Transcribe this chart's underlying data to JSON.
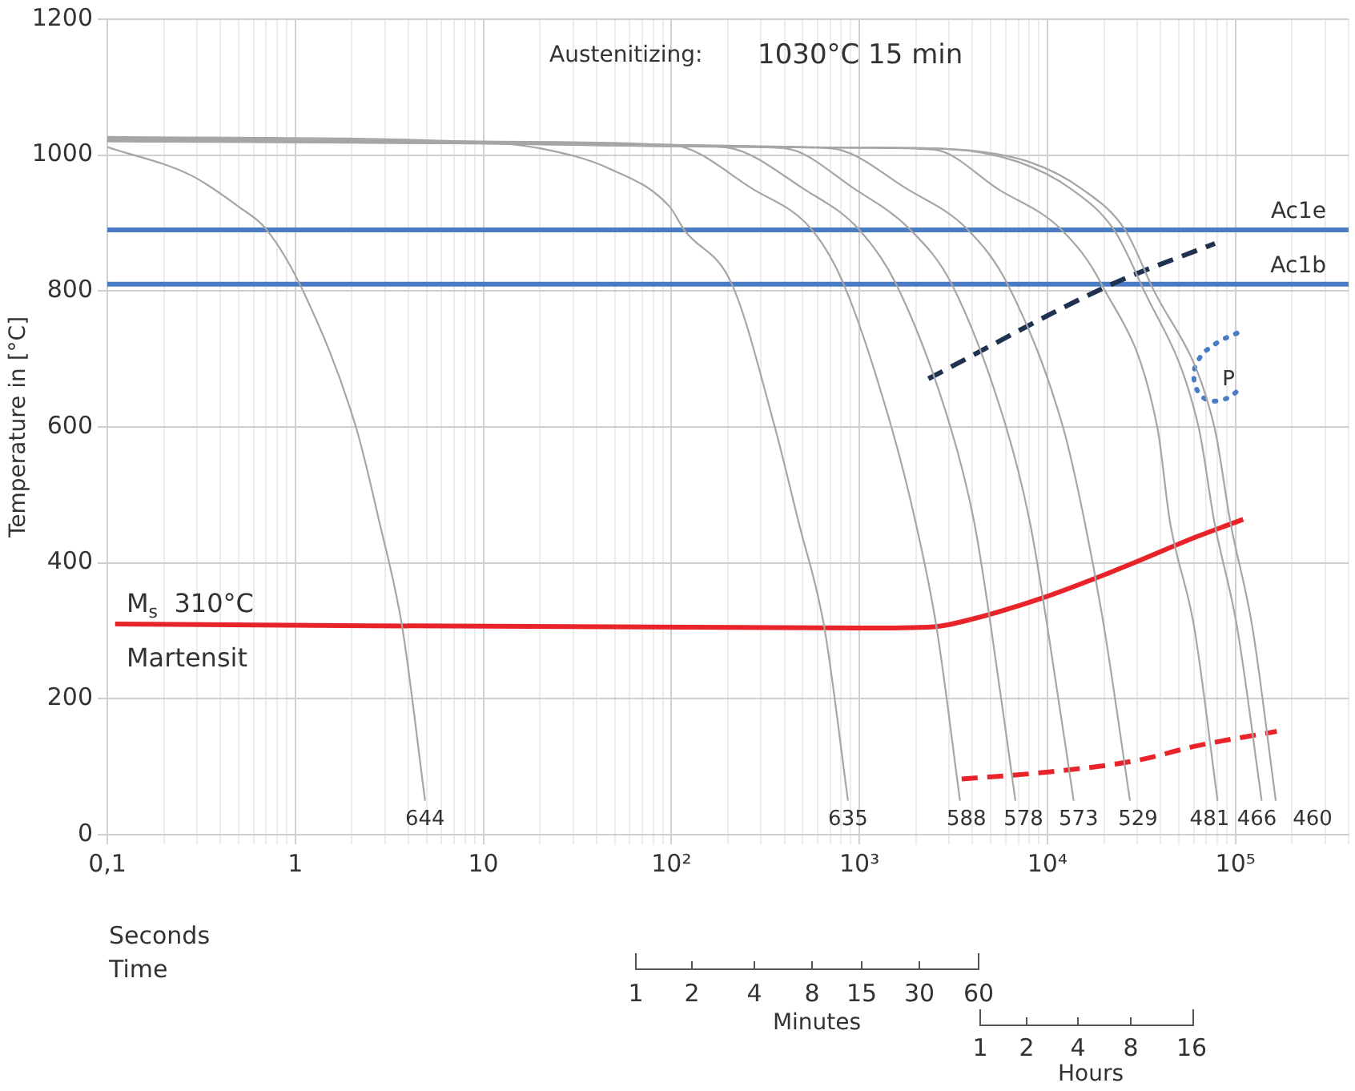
{
  "chart_data": {
    "type": "line",
    "ylabel": "Temperature in [°C]",
    "xlabel": "Time",
    "log": "x",
    "grid": true,
    "marker": "none",
    "line_style": "solid",
    "color": "#a6a6a6",
    "xlim": [
      0.1,
      400000
    ],
    "ylim": [
      0,
      1200
    ],
    "xticks": [
      {
        "value": 0.1,
        "label": "0,1"
      },
      {
        "value": 0.2,
        "label": null
      },
      {
        "value": 0.3,
        "label": null
      },
      {
        "value": 0.4,
        "label": null
      },
      {
        "value": 0.5,
        "label": null
      },
      {
        "value": 0.6,
        "label": null
      },
      {
        "value": 0.7,
        "label": null
      },
      {
        "value": 0.8,
        "label": null
      },
      {
        "value": 0.9,
        "label": null
      },
      1,
      {
        "value": 2,
        "label": null
      },
      {
        "value": 3,
        "label": null
      },
      {
        "value": 4,
        "label": null
      },
      {
        "value": 5,
        "label": null
      },
      {
        "value": 6,
        "label": null
      },
      {
        "value": 7,
        "label": null
      },
      {
        "value": 8,
        "label": null
      },
      {
        "value": 9,
        "label": null
      },
      10,
      {
        "value": 20,
        "label": null
      },
      {
        "value": 30,
        "label": null
      },
      {
        "value": 40,
        "label": null
      },
      {
        "value": 50,
        "label": null
      },
      {
        "value": 60,
        "label": null
      },
      {
        "value": 70,
        "label": null
      },
      {
        "value": 80,
        "label": null
      },
      {
        "value": 90,
        "label": null
      },
      {
        "value": 100,
        "label": "10²"
      },
      {
        "value": 200,
        "label": null
      },
      {
        "value": 300,
        "label": null
      },
      {
        "value": 400,
        "label": null
      },
      {
        "value": 500,
        "label": null
      },
      {
        "value": 600,
        "label": null
      },
      {
        "value": 700,
        "label": null
      },
      {
        "value": 800,
        "label": null
      },
      {
        "value": 900,
        "label": null
      },
      {
        "value": 1000,
        "label": "10³"
      },
      {
        "value": 2000,
        "label": null
      },
      {
        "value": 3000,
        "label": null
      },
      {
        "value": 4000,
        "label": null
      },
      {
        "value": 5000,
        "label": null
      },
      {
        "value": 6000,
        "label": null
      },
      {
        "value": 7000,
        "label": null
      },
      {
        "value": 8000,
        "label": null
      },
      {
        "value": 9000,
        "label": null
      },
      {
        "value": 10000,
        "label": "10⁴"
      },
      {
        "value": 20000,
        "label": null
      },
      {
        "value": 30000,
        "label": null
      },
      {
        "value": 40000,
        "label": null
      },
      {
        "value": 50000,
        "label": null
      },
      {
        "value": 60000,
        "label": null
      },
      {
        "value": 70000,
        "label": null
      },
      {
        "value": 80000,
        "label": null
      },
      {
        "value": 90000,
        "label": null
      },
      {
        "value": 100000,
        "label": "10⁵"
      },
      {
        "value": 200000,
        "label": null
      },
      {
        "value": 300000,
        "label": null
      },
      {
        "value": 400000,
        "label": null
      }
    ],
    "yticks": [
      0,
      200,
      400,
      600,
      800,
      1000,
      1200
    ],
    "series": [
      {
        "name": "644",
        "x": [
          0.1,
          0.28,
          0.5,
          0.7,
          1.1,
          2.1,
          2.8,
          3.7,
          4.9
        ],
        "values": [
          1012,
          970,
          924,
          891,
          800,
          600,
          460,
          306,
          50
        ]
      },
      {
        "name": "635",
        "x": [
          0.1,
          10,
          20,
          47,
          98,
          117,
          210,
          355,
          475,
          650,
          870
        ],
        "values": [
          1027,
          1019,
          1010,
          980,
          924,
          890,
          810,
          600,
          460,
          306,
          50
        ]
      },
      {
        "name": "588",
        "x": [
          0.1,
          10,
          100,
          272,
          560,
          826,
          1480,
          1990,
          2570,
          3430
        ],
        "values": [
          1026,
          1020,
          1015,
          950,
          890,
          810,
          600,
          460,
          306,
          50
        ]
      },
      {
        "name": "578",
        "x": [
          0.1,
          10,
          100,
          200,
          508,
          1000,
          1570,
          3050,
          4080,
          5010,
          6760
        ],
        "values": [
          1025,
          1019,
          1015,
          1011,
          950,
          890,
          810,
          600,
          460,
          306,
          50
        ]
      },
      {
        "name": "573",
        "x": [
          0.1,
          10,
          100,
          400,
          946,
          1870,
          3100,
          6030,
          8070,
          10000,
          13800
        ],
        "values": [
          1024,
          1019,
          1015,
          1010,
          950,
          890,
          810,
          600,
          460,
          306,
          50
        ]
      },
      {
        "name": "529",
        "x": [
          0.1,
          10,
          100,
          700,
          1800,
          3780,
          6140,
          12100,
          15800,
          20000,
          27500
        ],
        "values": [
          1023,
          1018,
          1014,
          1010,
          950,
          890,
          810,
          600,
          460,
          306,
          50
        ]
      },
      {
        "name": "481",
        "x": [
          0.1,
          10,
          100,
          1000,
          2500,
          5470,
          11900,
          19400,
          38400,
          44900,
          60300,
          80400
        ],
        "values": [
          1022,
          1018,
          1014,
          1011,
          1008,
          950,
          890,
          810,
          600,
          460,
          306,
          50
        ]
      },
      {
        "name": "466",
        "x": [
          0.1,
          10,
          100,
          1000,
          3000,
          7000,
          13400,
          22600,
          31500,
          63700,
          77300,
          102000,
          138000
        ],
        "values": [
          1021,
          1017,
          1013,
          1011,
          1009,
          990,
          950,
          890,
          810,
          600,
          460,
          306,
          50
        ]
      },
      {
        "name": "460",
        "x": [
          0.1,
          10,
          100,
          1000,
          3000,
          8000,
          15300,
          25900,
          35500,
          77300,
          94000,
          123000,
          164000
        ],
        "values": [
          1020,
          1017,
          1013,
          1011,
          1009,
          990,
          950,
          890,
          810,
          600,
          460,
          306,
          50
        ]
      },
      {
        "color": "#e8242a",
        "x": [
          0.11,
          1000,
          2500,
          3700,
          9100,
          24000,
          63000,
          110000
        ],
        "values": [
          310,
          304,
          306,
          315,
          347,
          391,
          439,
          464
        ]
      },
      {
        "color": "#e8242a",
        "line_style": "dashed",
        "x": [
          3500,
          9100,
          29600,
          63000,
          166000
        ],
        "values": [
          82,
          91,
          109,
          131,
          152
        ]
      },
      {
        "color": "#1f3350",
        "line_style": "dashed",
        "x": [
          2330,
          21200,
          77800
        ],
        "values": [
          671,
          808,
          870
        ]
      },
      {
        "color": "#4a7cc4",
        "line_style": "dotted",
        "x": [
          102000,
          80000,
          64000,
          60300,
          68400,
          85700,
          108000
        ],
        "values": [
          738,
          724,
          700,
          669,
          642,
          640,
          657
        ]
      }
    ],
    "ref_lines": [
      {
        "axis": "y",
        "value": 890,
        "label": "Ac1e",
        "color": "#4a7cc4"
      },
      {
        "axis": "y",
        "value": 810,
        "label": "Ac1b",
        "color": "#4a7cc4"
      }
    ],
    "annotations": [
      "Austenitizing:",
      "1030°C 15 min",
      "M$_{s}$  310°C",
      "Martensit",
      "Seconds",
      "P",
      "1",
      "2",
      "4",
      "8",
      "15",
      "30",
      "60",
      "Minutes",
      "1",
      "2",
      "4",
      "8",
      "16",
      "Hours"
    ]
  }
}
